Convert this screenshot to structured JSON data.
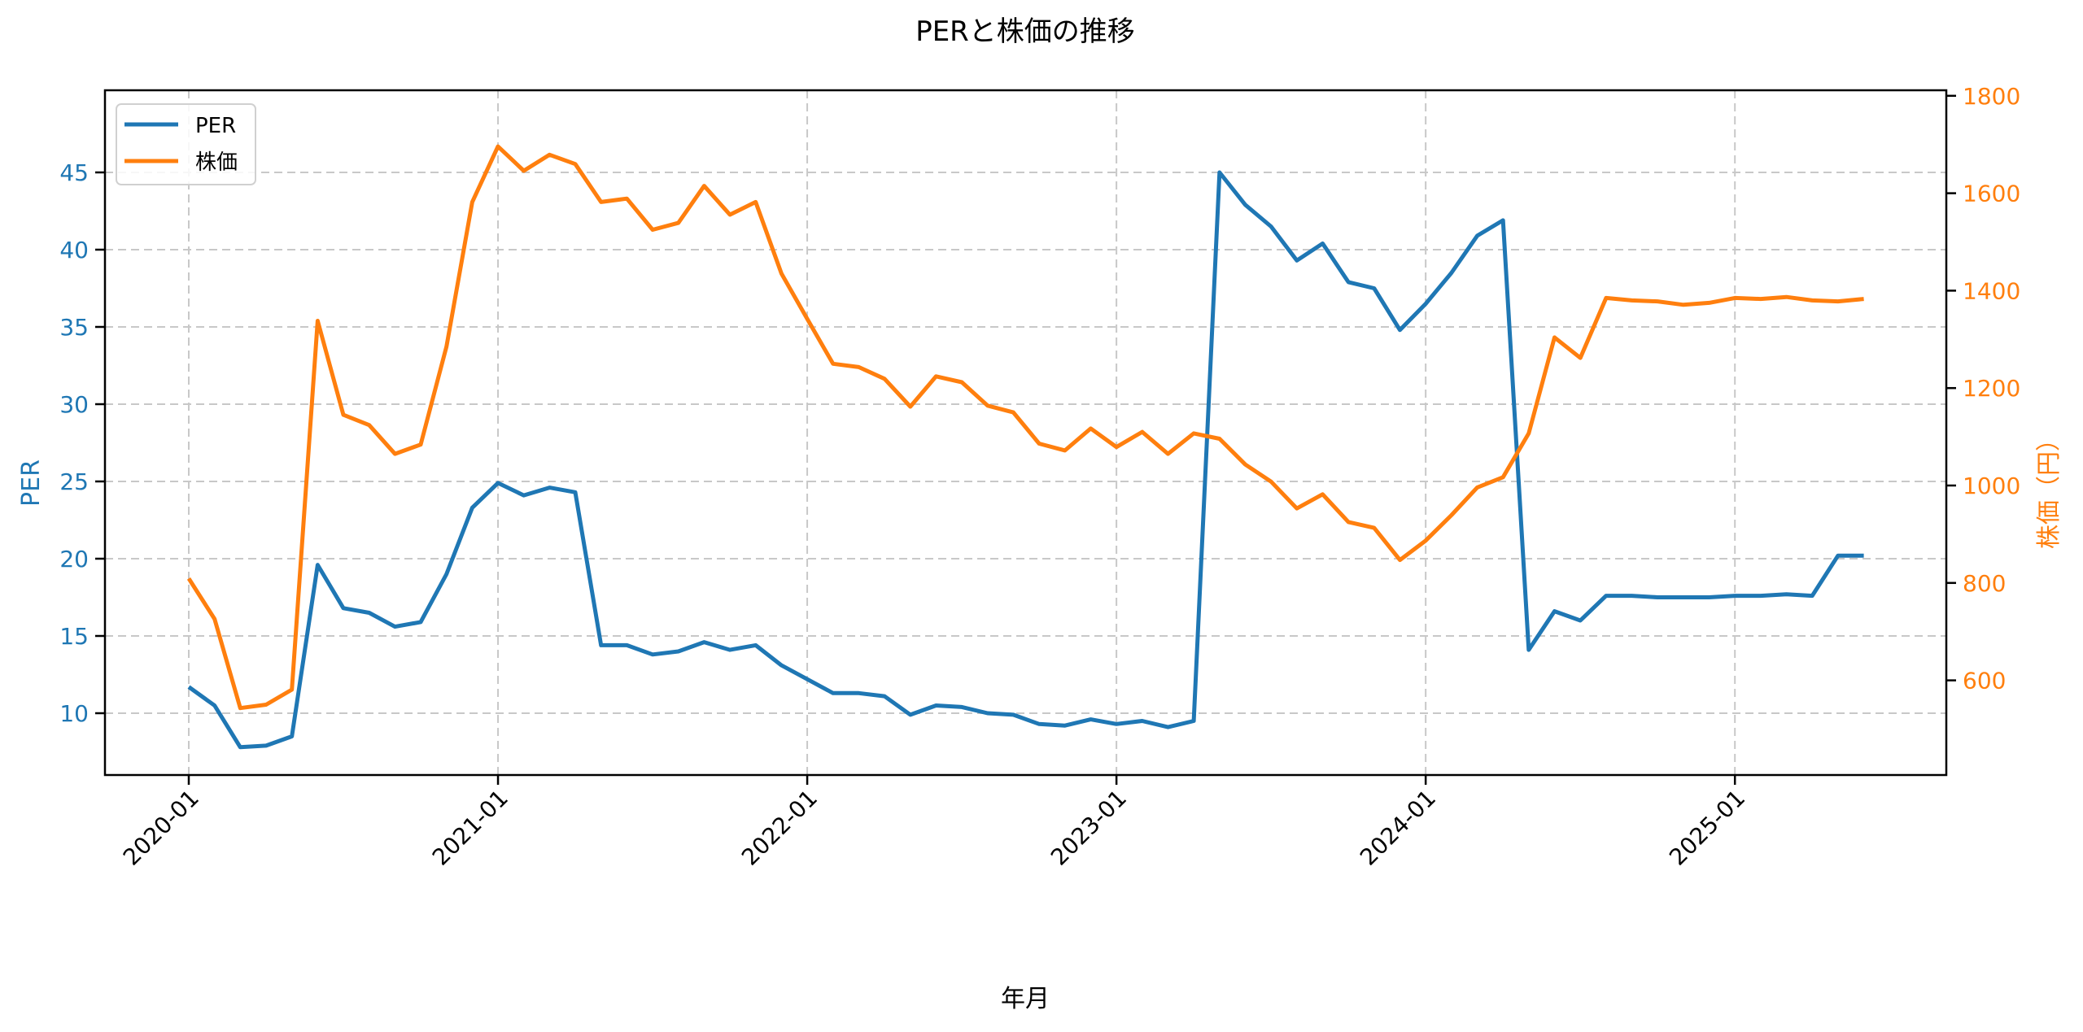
{
  "chart_data": {
    "type": "line",
    "title": "PERと株価の推移",
    "xlabel": "年月",
    "ylabel": "PER",
    "ylabel_right": "株価（円）",
    "x_ticks": [
      "2020-01",
      "2021-01",
      "2022-01",
      "2023-01",
      "2024-01",
      "2025-01"
    ],
    "y_ticks": [
      10,
      15,
      20,
      25,
      30,
      35,
      40,
      45
    ],
    "y_right_ticks": [
      600,
      800,
      1000,
      1200,
      1400,
      1600,
      1800
    ],
    "ylim": [
      6,
      47
    ],
    "ylim_right": [
      406,
      1812
    ],
    "grid": true,
    "legend_position": "upper left",
    "x": [
      "2020-01",
      "2020-02",
      "2020-03",
      "2020-04",
      "2020-05",
      "2020-06",
      "2020-07",
      "2020-08",
      "2020-09",
      "2020-10",
      "2020-11",
      "2020-12",
      "2021-01",
      "2021-02",
      "2021-03",
      "2021-04",
      "2021-05",
      "2021-06",
      "2021-07",
      "2021-08",
      "2021-09",
      "2021-10",
      "2021-11",
      "2021-12",
      "2022-01",
      "2022-02",
      "2022-03",
      "2022-04",
      "2022-05",
      "2022-06",
      "2022-07",
      "2022-08",
      "2022-09",
      "2022-10",
      "2022-11",
      "2022-12",
      "2023-01",
      "2023-02",
      "2023-03",
      "2023-04",
      "2023-05",
      "2023-06",
      "2023-07",
      "2023-08",
      "2023-09",
      "2023-10",
      "2023-11",
      "2023-12",
      "2024-01",
      "2024-02",
      "2024-03",
      "2024-04",
      "2024-05",
      "2024-06",
      "2024-07",
      "2024-08",
      "2024-09",
      "2024-10",
      "2024-11",
      "2024-12",
      "2025-01",
      "2025-02",
      "2025-03",
      "2025-04",
      "2025-05",
      "2025-06"
    ],
    "series": [
      {
        "name": "PER",
        "axis": "left",
        "color": "#1f77b4",
        "values": [
          11.7,
          10.5,
          7.8,
          7.9,
          8.5,
          19.6,
          16.8,
          16.5,
          15.6,
          15.9,
          19.0,
          23.3,
          24.9,
          24.1,
          24.6,
          24.3,
          14.4,
          14.4,
          13.8,
          14.0,
          14.6,
          14.1,
          14.4,
          13.1,
          12.2,
          11.3,
          11.3,
          11.1,
          9.9,
          10.5,
          10.4,
          10.0,
          9.9,
          9.3,
          9.2,
          9.6,
          9.3,
          9.5,
          9.1,
          9.5,
          45.0,
          42.9,
          41.5,
          39.3,
          40.4,
          37.9,
          37.5,
          34.8,
          36.5,
          38.5,
          40.9,
          41.9,
          14.1,
          16.6,
          16.0,
          17.6,
          17.6,
          17.5,
          17.5,
          17.5,
          17.6,
          17.6,
          17.7,
          17.6,
          20.2,
          20.2
        ]
      },
      {
        "name": "株価",
        "axis": "right",
        "color": "#ff7f0e",
        "values": [
          809,
          726,
          543,
          550,
          581,
          1338,
          1145,
          1124,
          1065,
          1084,
          1285,
          1582,
          1696,
          1646,
          1679,
          1660,
          1582,
          1589,
          1525,
          1539,
          1615,
          1556,
          1582,
          1435,
          1342,
          1250,
          1243,
          1219,
          1162,
          1224,
          1212,
          1164,
          1150,
          1086,
          1072,
          1117,
          1079,
          1110,
          1065,
          1107,
          1096,
          1043,
          1008,
          953,
          982,
          925,
          913,
          847,
          887,
          939,
          996,
          1017,
          1107,
          1304,
          1262,
          1385,
          1380,
          1378,
          1371,
          1375,
          1385,
          1383,
          1387,
          1380,
          1378,
          1383
        ]
      }
    ]
  },
  "legend": {
    "items": [
      {
        "label": "PER",
        "color": "#1f77b4"
      },
      {
        "label": "株価",
        "color": "#ff7f0e"
      }
    ]
  },
  "colors": {
    "per_axis": "#1f77b4",
    "price_axis": "#ff7f0e",
    "grid": "#c8c8c8"
  }
}
